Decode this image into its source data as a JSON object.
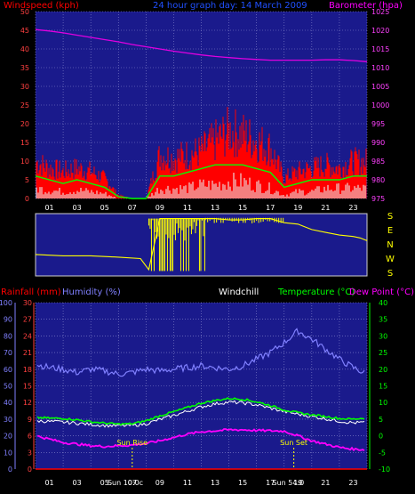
{
  "header": {
    "windspeed_title": "Windspeed (kph)",
    "graph_date": "24 hour graph day:  14 March  2009",
    "barometer_title": "Barometer (hpa)"
  },
  "lower_header": {
    "rainfall_title": "Rainfall (mm)",
    "humidity_title": "Humidity (%)",
    "windchill_title": "Windchill",
    "temperature_title": "Temperature (°C)",
    "dewpoint_title": "Dew Point (°C)"
  },
  "direction_labels": [
    "S",
    "E",
    "N",
    "W",
    "S"
  ],
  "annotations": {
    "sunrise_label": "Sun Rise",
    "sunset_label": "Sun Set",
    "sunrise_time": "Sun 10:0c",
    "sunset_time": "Sun 54:0"
  },
  "x_tick_labels": [
    "01",
    "03",
    "05",
    "07",
    "09",
    "11",
    "13",
    "15",
    "17",
    "19",
    "21",
    "23"
  ],
  "colors": {
    "panel_bg": "#1a1a8c",
    "windspeed": "#ff0000",
    "gust": "#ff0000",
    "avg_wind": "#00ff00",
    "lull": "#e8ffff",
    "barometer": "#e000e0",
    "direction": "#ffff00",
    "humidity": "#8080ff",
    "temperature": "#00ff00",
    "dewpoint": "#ff00ff",
    "windchill": "#ffffff",
    "rainfall": "#ff0000"
  },
  "chart_data": [
    {
      "type": "line",
      "name": "wind-barometer",
      "x": [
        0,
        1,
        2,
        3,
        4,
        5,
        6,
        7,
        8,
        9,
        10,
        11,
        12,
        13,
        14,
        15,
        16,
        17,
        18,
        19,
        20,
        21,
        22,
        23,
        24
      ],
      "y_left_ticks": [
        0,
        5,
        10,
        15,
        20,
        25,
        30,
        35,
        40,
        45,
        50
      ],
      "y_left_range": [
        0,
        50
      ],
      "y_right_ticks": [
        975,
        980,
        985,
        990,
        995,
        1000,
        1005,
        1010,
        1015,
        1020,
        1025
      ],
      "y_right_range": [
        975,
        1025
      ],
      "series": [
        {
          "key": "gust",
          "values": [
            11,
            9,
            8,
            9,
            8,
            6,
            1,
            0,
            0,
            13,
            12,
            13,
            14,
            17,
            20,
            19,
            17,
            15,
            6,
            8,
            9,
            10,
            9,
            11,
            11
          ]
        },
        {
          "key": "avg_wind",
          "values": [
            6,
            5,
            4,
            5,
            4,
            3,
            0.5,
            0,
            0,
            6,
            6,
            7,
            8,
            9,
            9,
            9,
            8,
            7,
            3,
            4,
            5,
            5,
            5,
            6,
            6
          ]
        },
        {
          "key": "lull",
          "values": [
            3,
            2.5,
            2,
            2.5,
            2,
            1.5,
            0,
            0,
            0,
            3,
            3,
            3,
            4,
            4,
            5,
            5,
            4,
            3,
            1,
            2,
            2,
            3,
            3,
            3,
            3
          ]
        },
        {
          "key": "barometer",
          "values": [
            1020.2,
            1019.8,
            1019.3,
            1018.7,
            1018.1,
            1017.5,
            1016.9,
            1016.2,
            1015.6,
            1015.0,
            1014.4,
            1013.9,
            1013.4,
            1013.0,
            1012.7,
            1012.4,
            1012.2,
            1012.0,
            1012.0,
            1012.0,
            1012.0,
            1012.1,
            1012.1,
            1011.9,
            1011.6
          ]
        }
      ]
    },
    {
      "type": "line",
      "name": "wind-direction",
      "x": [
        0,
        2,
        4,
        6,
        7.6,
        8.2,
        9,
        10,
        11,
        12,
        13,
        14,
        15,
        16,
        17,
        18,
        19,
        20,
        21,
        22,
        23,
        23.5,
        24
      ],
      "y_range": [
        0,
        4
      ],
      "series": [
        {
          "key": "direction",
          "values": [
            1.3,
            1.2,
            1.2,
            1.1,
            1.0,
            0.2,
            3.9,
            3.9,
            3.9,
            3.9,
            3.9,
            3.8,
            3.8,
            3.9,
            3.9,
            3.6,
            3.5,
            3.1,
            2.9,
            2.7,
            2.6,
            2.5,
            2.3
          ]
        }
      ]
    },
    {
      "type": "line",
      "name": "temperature-humidity",
      "x": [
        0,
        1,
        2,
        3,
        4,
        5,
        6,
        7,
        8,
        9,
        10,
        11,
        12,
        13,
        14,
        15,
        16,
        17,
        18,
        19,
        20,
        21,
        22,
        23,
        24
      ],
      "y_rain_ticks": [
        0,
        3,
        6,
        9,
        12,
        15,
        18,
        21,
        24,
        27,
        30
      ],
      "y_rain_range": [
        0,
        30
      ],
      "y_humidity_ticks": [
        0,
        10,
        20,
        30,
        40,
        50,
        60,
        70,
        80,
        90,
        100
      ],
      "y_humidity_range": [
        0,
        100
      ],
      "y_temp_ticks": [
        -10,
        -5,
        0,
        5,
        10,
        15,
        20,
        25,
        30,
        35,
        40
      ],
      "y_temp_range": [
        -10,
        40
      ],
      "series": [
        {
          "key": "humidity",
          "values": [
            63,
            61,
            60,
            58,
            60,
            59,
            57,
            58,
            60,
            59,
            60,
            61,
            62,
            61,
            60,
            62,
            66,
            70,
            76,
            83,
            78,
            72,
            66,
            61,
            57
          ]
        },
        {
          "key": "temperature",
          "values": [
            5.5,
            5.3,
            5.2,
            4.8,
            4.2,
            3.8,
            3.5,
            3.6,
            4.5,
            6.0,
            7.2,
            8.5,
            9.8,
            10.6,
            11.2,
            11.0,
            10.2,
            9.1,
            7.8,
            6.9,
            6.3,
            5.8,
            5.2,
            5.0,
            5.4
          ]
        },
        {
          "key": "windchill",
          "values": [
            4.5,
            4.3,
            4.1,
            3.8,
            3.4,
            3.1,
            3.0,
            3.1,
            3.6,
            4.9,
            6.1,
            7.4,
            8.7,
            9.6,
            10.1,
            9.9,
            9.3,
            8.3,
            7.3,
            6.5,
            5.8,
            5.1,
            4.4,
            3.9,
            4.0
          ]
        },
        {
          "key": "dewpoint",
          "values": [
            0,
            -1,
            -2,
            -2.5,
            -3,
            -3.2,
            -3,
            -2.8,
            -2.3,
            -1.5,
            -0.5,
            0.5,
            1.2,
            1.5,
            1.8,
            1.8,
            1.6,
            1.5,
            1.4,
            0,
            -1.5,
            -2.5,
            -3.5,
            -4,
            -4.2
          ]
        },
        {
          "key": "rainfall",
          "values": [
            0,
            0,
            0,
            0,
            0,
            0,
            0,
            0,
            0,
            0,
            0,
            0,
            0,
            0,
            0,
            0,
            0,
            0,
            0,
            0,
            0,
            0,
            0,
            0,
            0
          ]
        }
      ],
      "sunrise_hour": 7,
      "sunset_hour": 18.7
    }
  ]
}
